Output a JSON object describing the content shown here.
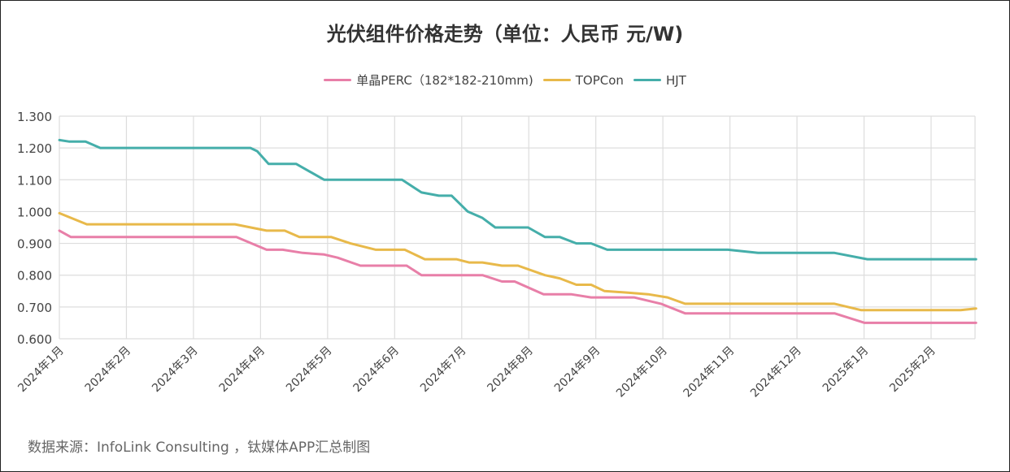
{
  "chart_data": {
    "type": "line",
    "title": "光伏组件价格走势（单位：人民币 元/W)",
    "xlabel": "",
    "ylabel": "",
    "ylim": [
      0.6,
      1.3
    ],
    "yticks": [
      "1.300",
      "1.200",
      "1.100",
      "1.000",
      "0.900",
      "0.800",
      "0.700",
      "0.600"
    ],
    "ytick_values": [
      1.3,
      1.2,
      1.1,
      1.0,
      0.9,
      0.8,
      0.7,
      0.6
    ],
    "xlim": [
      0,
      13.67
    ],
    "x_unit": "months since 2024-01",
    "categories": [
      "2024年1月",
      "2024年2月",
      "2024年3月",
      "2024年4月",
      "2024年5月",
      "2024年6月",
      "2024年7月",
      "2024年8月",
      "2024年9月",
      "2024年10月",
      "2024年11月",
      "2024年12月",
      "2025年1月",
      "2025年2月"
    ],
    "grid": true,
    "legend_position": "top-center",
    "series": [
      {
        "name": "单晶PERC（182*182-210mm)",
        "color": "#e87fa8",
        "points": [
          [
            0,
            0.94
          ],
          [
            0.17,
            0.92
          ],
          [
            2.64,
            0.92
          ],
          [
            3.09,
            0.88
          ],
          [
            3.33,
            0.88
          ],
          [
            3.63,
            0.87
          ],
          [
            3.95,
            0.865
          ],
          [
            4.15,
            0.855
          ],
          [
            4.49,
            0.83
          ],
          [
            5.18,
            0.83
          ],
          [
            5.4,
            0.8
          ],
          [
            6.31,
            0.8
          ],
          [
            6.6,
            0.78
          ],
          [
            6.79,
            0.78
          ],
          [
            7.22,
            0.74
          ],
          [
            7.63,
            0.74
          ],
          [
            7.93,
            0.73
          ],
          [
            8.57,
            0.73
          ],
          [
            8.97,
            0.71
          ],
          [
            9.33,
            0.68
          ],
          [
            11.56,
            0.68
          ],
          [
            12.01,
            0.65
          ],
          [
            13.67,
            0.65
          ]
        ]
      },
      {
        "name": "TOPCon",
        "color": "#e8b94a",
        "points": [
          [
            0,
            0.995
          ],
          [
            0.41,
            0.96
          ],
          [
            2.62,
            0.96
          ],
          [
            3.09,
            0.94
          ],
          [
            3.36,
            0.94
          ],
          [
            3.58,
            0.92
          ],
          [
            4.05,
            0.92
          ],
          [
            4.34,
            0.9
          ],
          [
            4.72,
            0.88
          ],
          [
            5.15,
            0.88
          ],
          [
            5.45,
            0.85
          ],
          [
            5.92,
            0.85
          ],
          [
            6.11,
            0.84
          ],
          [
            6.31,
            0.84
          ],
          [
            6.6,
            0.83
          ],
          [
            6.84,
            0.83
          ],
          [
            7.24,
            0.8
          ],
          [
            7.46,
            0.79
          ],
          [
            7.71,
            0.77
          ],
          [
            7.93,
            0.77
          ],
          [
            8.13,
            0.75
          ],
          [
            8.48,
            0.745
          ],
          [
            8.78,
            0.74
          ],
          [
            9.07,
            0.73
          ],
          [
            9.33,
            0.71
          ],
          [
            11.56,
            0.71
          ],
          [
            11.96,
            0.69
          ],
          [
            13.44,
            0.69
          ],
          [
            13.67,
            0.695
          ]
        ]
      },
      {
        "name": "HJT",
        "color": "#45aeaa",
        "points": [
          [
            0,
            1.225
          ],
          [
            0.15,
            1.22
          ],
          [
            0.39,
            1.22
          ],
          [
            0.61,
            1.2
          ],
          [
            2.85,
            1.2
          ],
          [
            2.95,
            1.19
          ],
          [
            3.12,
            1.15
          ],
          [
            3.53,
            1.15
          ],
          [
            3.95,
            1.1
          ],
          [
            5.11,
            1.1
          ],
          [
            5.4,
            1.06
          ],
          [
            5.66,
            1.05
          ],
          [
            5.85,
            1.05
          ],
          [
            6.09,
            1.0
          ],
          [
            6.31,
            0.98
          ],
          [
            6.5,
            0.95
          ],
          [
            6.99,
            0.95
          ],
          [
            7.24,
            0.92
          ],
          [
            7.46,
            0.92
          ],
          [
            7.71,
            0.9
          ],
          [
            7.93,
            0.9
          ],
          [
            8.17,
            0.88
          ],
          [
            9.97,
            0.88
          ],
          [
            10.42,
            0.87
          ],
          [
            11.56,
            0.87
          ],
          [
            12.05,
            0.85
          ],
          [
            13.67,
            0.85
          ]
        ]
      }
    ],
    "source": "数据来源：InfoLink Consulting ，钛媒体APP汇总制图"
  }
}
